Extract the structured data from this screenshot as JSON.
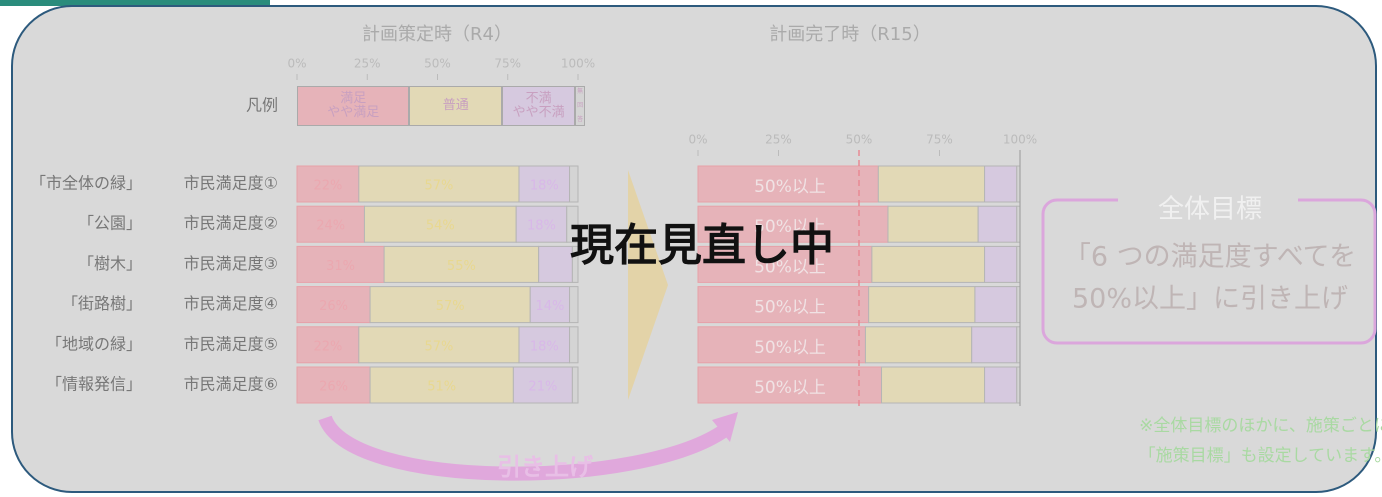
{
  "chart_data": [
    {
      "type": "stacked_bar_h",
      "title": "計画策定時（R4）",
      "legend_title": "凡例",
      "xlim": [
        0,
        100
      ],
      "xticks": [
        {
          "value": 0,
          "label": "0%"
        },
        {
          "value": 25,
          "label": "25%"
        },
        {
          "value": 50,
          "label": "50%"
        },
        {
          "value": 75,
          "label": "75%"
        },
        {
          "value": 100,
          "label": "100%"
        }
      ],
      "row_groups": [
        "「市全体の緑」",
        "「公園」",
        "「樹木」",
        "「街路樹」",
        "「地域の緑」",
        "「情報発信」"
      ],
      "categories": [
        "市民満足度①",
        "市民満足度②",
        "市民満足度③",
        "市民満足度④",
        "市民満足度⑤",
        "市民満足度⑥"
      ],
      "series": [
        {
          "name": "満足\nやや満足",
          "color": "#e6b3b9",
          "values": [
            22,
            24,
            31,
            26,
            22,
            26
          ],
          "value_labels": [
            "22%",
            "24%",
            "31%",
            "26%",
            "22%",
            "26%"
          ]
        },
        {
          "name": "普通",
          "color": "#e2d9b6",
          "values": [
            57,
            54,
            55,
            57,
            57,
            51
          ],
          "value_labels": [
            "57%",
            "54%",
            "55%",
            "57%",
            "57%",
            "51%"
          ]
        },
        {
          "name": "不満\nやや不満",
          "color": "#d6c9df",
          "values": [
            18,
            18,
            12,
            14,
            18,
            21
          ],
          "value_labels": [
            "18%",
            "18%",
            null,
            "14%",
            "18%",
            "21%"
          ]
        },
        {
          "name": "無回答",
          "color": "#d4d4d4",
          "values": [
            3,
            4,
            2,
            3,
            3,
            2
          ],
          "value_labels": [
            null,
            null,
            null,
            null,
            null,
            null
          ]
        }
      ]
    },
    {
      "type": "stacked_bar_h",
      "title": "計画完了時（R15）",
      "xlim": [
        0,
        100
      ],
      "xticks": [
        {
          "value": 0,
          "label": "0%"
        },
        {
          "value": 25,
          "label": "25%"
        },
        {
          "value": 50,
          "label": "50%"
        },
        {
          "value": 75,
          "label": "75%"
        },
        {
          "value": 100,
          "label": "100%"
        }
      ],
      "target_line": 50,
      "target_labels": [
        "50%以上",
        "50%以上",
        "50%以上",
        "50%以上",
        "50%以上",
        "50%以上"
      ],
      "series": [
        {
          "color": "#e6b3b9",
          "values": [
            56,
            59,
            54,
            53,
            52,
            57
          ]
        },
        {
          "color": "#e2d9b6",
          "values": [
            33,
            28,
            35,
            33,
            33,
            32
          ]
        },
        {
          "color": "#d6c9df",
          "values": [
            10,
            12,
            10,
            13,
            14,
            10
          ]
        },
        {
          "color": "#d4d4d4",
          "values": [
            1,
            1,
            1,
            1,
            1,
            1
          ]
        }
      ]
    }
  ],
  "overlay_text": "現在見直し中",
  "arrow_label": "引き上げ",
  "target_box": {
    "title": "全体目標",
    "lines": [
      "「6 つの満足度すべてを",
      "50%以上」に引き上げ"
    ]
  },
  "note": [
    "※全体目標のほかに、施策ごとに",
    "「施策目標」も設定しています。"
  ]
}
